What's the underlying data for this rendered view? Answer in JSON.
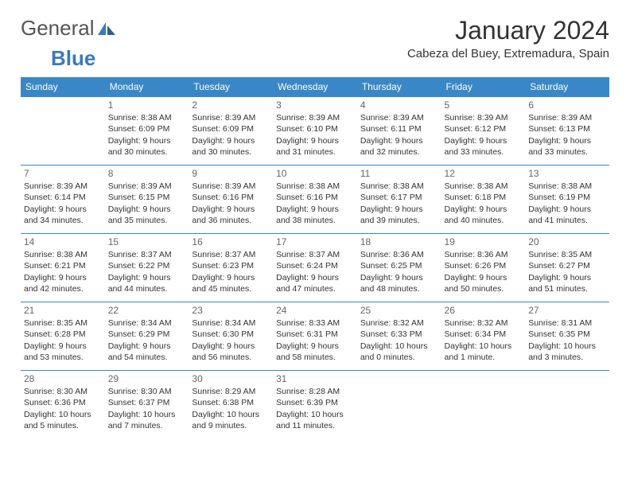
{
  "logo": {
    "general": "General",
    "blue": "Blue"
  },
  "title": "January 2024",
  "location": "Cabeza del Buey, Extremadura, Spain",
  "colors": {
    "header_bg": "#3a87c7",
    "header_fg": "#ffffff",
    "border": "#3a87c7",
    "text": "#333333",
    "daynum": "#666666",
    "logo_gray": "#555555",
    "logo_blue": "#3a7abd"
  },
  "days_of_week": [
    "Sunday",
    "Monday",
    "Tuesday",
    "Wednesday",
    "Thursday",
    "Friday",
    "Saturday"
  ],
  "start_offset": 1,
  "cells": [
    {
      "n": "1",
      "sr": "8:38 AM",
      "ss": "6:09 PM",
      "dl1": "Daylight: 9 hours",
      "dl2": "and 30 minutes."
    },
    {
      "n": "2",
      "sr": "8:39 AM",
      "ss": "6:09 PM",
      "dl1": "Daylight: 9 hours",
      "dl2": "and 30 minutes."
    },
    {
      "n": "3",
      "sr": "8:39 AM",
      "ss": "6:10 PM",
      "dl1": "Daylight: 9 hours",
      "dl2": "and 31 minutes."
    },
    {
      "n": "4",
      "sr": "8:39 AM",
      "ss": "6:11 PM",
      "dl1": "Daylight: 9 hours",
      "dl2": "and 32 minutes."
    },
    {
      "n": "5",
      "sr": "8:39 AM",
      "ss": "6:12 PM",
      "dl1": "Daylight: 9 hours",
      "dl2": "and 33 minutes."
    },
    {
      "n": "6",
      "sr": "8:39 AM",
      "ss": "6:13 PM",
      "dl1": "Daylight: 9 hours",
      "dl2": "and 33 minutes."
    },
    {
      "n": "7",
      "sr": "8:39 AM",
      "ss": "6:14 PM",
      "dl1": "Daylight: 9 hours",
      "dl2": "and 34 minutes."
    },
    {
      "n": "8",
      "sr": "8:39 AM",
      "ss": "6:15 PM",
      "dl1": "Daylight: 9 hours",
      "dl2": "and 35 minutes."
    },
    {
      "n": "9",
      "sr": "8:39 AM",
      "ss": "6:16 PM",
      "dl1": "Daylight: 9 hours",
      "dl2": "and 36 minutes."
    },
    {
      "n": "10",
      "sr": "8:38 AM",
      "ss": "6:16 PM",
      "dl1": "Daylight: 9 hours",
      "dl2": "and 38 minutes."
    },
    {
      "n": "11",
      "sr": "8:38 AM",
      "ss": "6:17 PM",
      "dl1": "Daylight: 9 hours",
      "dl2": "and 39 minutes."
    },
    {
      "n": "12",
      "sr": "8:38 AM",
      "ss": "6:18 PM",
      "dl1": "Daylight: 9 hours",
      "dl2": "and 40 minutes."
    },
    {
      "n": "13",
      "sr": "8:38 AM",
      "ss": "6:19 PM",
      "dl1": "Daylight: 9 hours",
      "dl2": "and 41 minutes."
    },
    {
      "n": "14",
      "sr": "8:38 AM",
      "ss": "6:21 PM",
      "dl1": "Daylight: 9 hours",
      "dl2": "and 42 minutes."
    },
    {
      "n": "15",
      "sr": "8:37 AM",
      "ss": "6:22 PM",
      "dl1": "Daylight: 9 hours",
      "dl2": "and 44 minutes."
    },
    {
      "n": "16",
      "sr": "8:37 AM",
      "ss": "6:23 PM",
      "dl1": "Daylight: 9 hours",
      "dl2": "and 45 minutes."
    },
    {
      "n": "17",
      "sr": "8:37 AM",
      "ss": "6:24 PM",
      "dl1": "Daylight: 9 hours",
      "dl2": "and 47 minutes."
    },
    {
      "n": "18",
      "sr": "8:36 AM",
      "ss": "6:25 PM",
      "dl1": "Daylight: 9 hours",
      "dl2": "and 48 minutes."
    },
    {
      "n": "19",
      "sr": "8:36 AM",
      "ss": "6:26 PM",
      "dl1": "Daylight: 9 hours",
      "dl2": "and 50 minutes."
    },
    {
      "n": "20",
      "sr": "8:35 AM",
      "ss": "6:27 PM",
      "dl1": "Daylight: 9 hours",
      "dl2": "and 51 minutes."
    },
    {
      "n": "21",
      "sr": "8:35 AM",
      "ss": "6:28 PM",
      "dl1": "Daylight: 9 hours",
      "dl2": "and 53 minutes."
    },
    {
      "n": "22",
      "sr": "8:34 AM",
      "ss": "6:29 PM",
      "dl1": "Daylight: 9 hours",
      "dl2": "and 54 minutes."
    },
    {
      "n": "23",
      "sr": "8:34 AM",
      "ss": "6:30 PM",
      "dl1": "Daylight: 9 hours",
      "dl2": "and 56 minutes."
    },
    {
      "n": "24",
      "sr": "8:33 AM",
      "ss": "6:31 PM",
      "dl1": "Daylight: 9 hours",
      "dl2": "and 58 minutes."
    },
    {
      "n": "25",
      "sr": "8:32 AM",
      "ss": "6:33 PM",
      "dl1": "Daylight: 10 hours",
      "dl2": "and 0 minutes."
    },
    {
      "n": "26",
      "sr": "8:32 AM",
      "ss": "6:34 PM",
      "dl1": "Daylight: 10 hours",
      "dl2": "and 1 minute."
    },
    {
      "n": "27",
      "sr": "8:31 AM",
      "ss": "6:35 PM",
      "dl1": "Daylight: 10 hours",
      "dl2": "and 3 minutes."
    },
    {
      "n": "28",
      "sr": "8:30 AM",
      "ss": "6:36 PM",
      "dl1": "Daylight: 10 hours",
      "dl2": "and 5 minutes."
    },
    {
      "n": "29",
      "sr": "8:30 AM",
      "ss": "6:37 PM",
      "dl1": "Daylight: 10 hours",
      "dl2": "and 7 minutes."
    },
    {
      "n": "30",
      "sr": "8:29 AM",
      "ss": "6:38 PM",
      "dl1": "Daylight: 10 hours",
      "dl2": "and 9 minutes."
    },
    {
      "n": "31",
      "sr": "8:28 AM",
      "ss": "6:39 PM",
      "dl1": "Daylight: 10 hours",
      "dl2": "and 11 minutes."
    }
  ],
  "labels": {
    "sunrise": "Sunrise:",
    "sunset": "Sunset:"
  }
}
